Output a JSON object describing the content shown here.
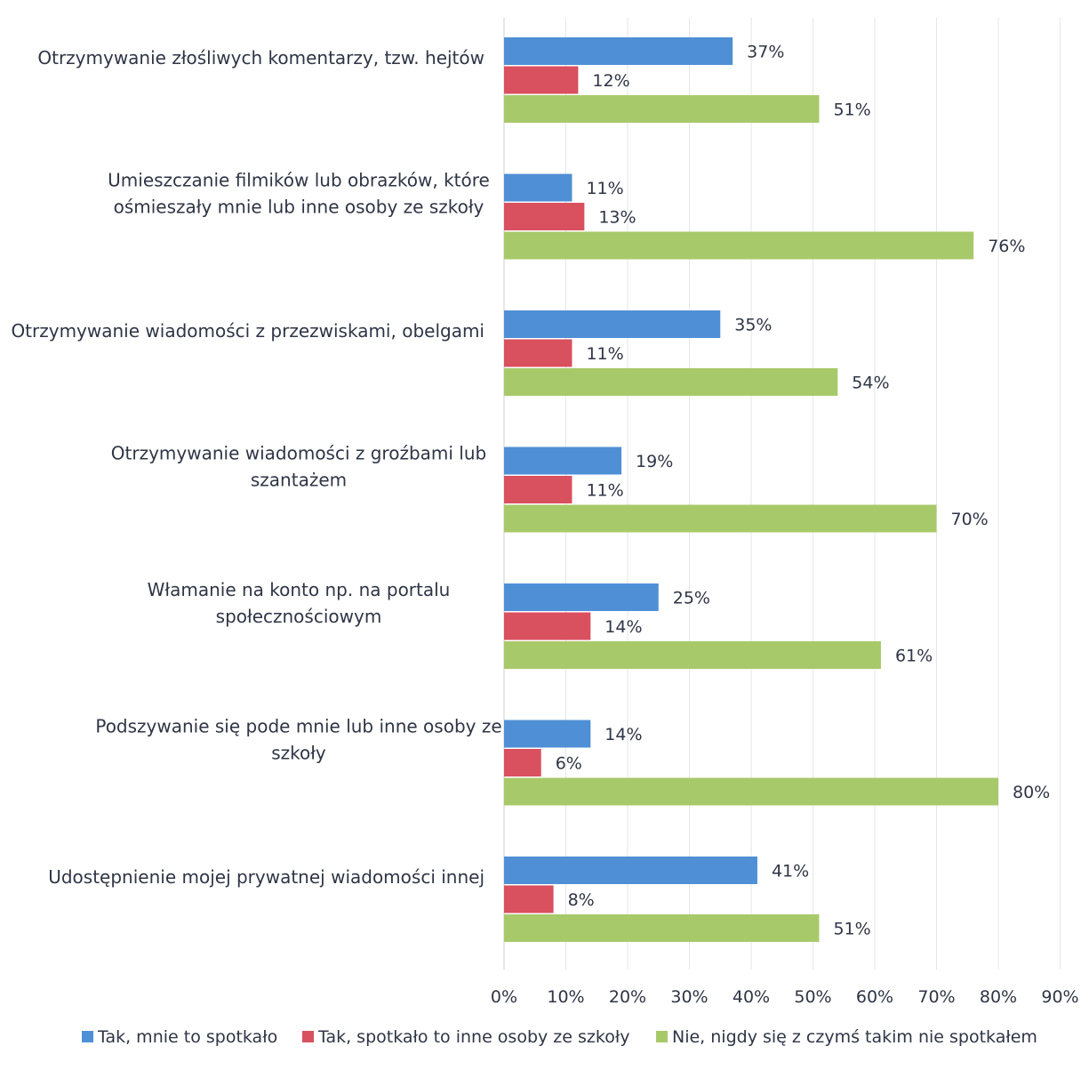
{
  "chart_data": {
    "type": "bar",
    "orientation": "horizontal",
    "categories": [
      "Otrzymywanie złośliwych komentarzy, tzw. hejtów",
      "Umieszczanie filmików lub obrazków, które ośmieszały mnie lub inne osoby ze szkoły",
      "Otrzymywanie wiadomości z przezwiskami, obelgami",
      "Otrzymywanie wiadomości z groźbami lub szantażem",
      "Włamanie na konto np. na portalu społecznościowym",
      "Podszywanie się pode mnie lub inne osoby ze szkoły",
      "Udostępnienie mojej prywatnej wiadomości innej"
    ],
    "category_lines": [
      [
        "Otrzymywanie złośliwych komentarzy, tzw. hejtów"
      ],
      [
        "Umieszczanie filmików lub obrazków, które",
        "ośmieszały mnie lub inne osoby ze szkoły"
      ],
      [
        "Otrzymywanie wiadomości z przezwiskami, obelgami"
      ],
      [
        "Otrzymywanie wiadomości z groźbami lub",
        "szantażem"
      ],
      [
        "Włamanie na konto np. na portalu",
        "społecznościowym"
      ],
      [
        "Podszywanie się pode mnie lub inne osoby ze",
        "szkoły"
      ],
      [
        "Udostępnienie mojej prywatnej wiadomości innej"
      ]
    ],
    "series": [
      {
        "name": "Tak, mnie to spotkało",
        "color": "#4f8fd6",
        "values": [
          37,
          11,
          35,
          19,
          25,
          14,
          41
        ]
      },
      {
        "name": "Tak, spotkało to inne osoby ze szkoły",
        "color": "#d9505f",
        "values": [
          12,
          13,
          11,
          11,
          14,
          6,
          8
        ]
      },
      {
        "name": "Nie, nigdy się z czymś takim nie spotkałem",
        "color": "#a8c96a",
        "values": [
          51,
          76,
          54,
          70,
          61,
          80,
          51
        ]
      }
    ],
    "value_suffix": "%",
    "xlim": [
      0,
      90
    ],
    "x_ticks": [
      "0%",
      "10%",
      "20%",
      "30%",
      "40%",
      "50%",
      "60%",
      "70%",
      "80%",
      "90%"
    ],
    "grid": true,
    "legend": "bottom"
  }
}
